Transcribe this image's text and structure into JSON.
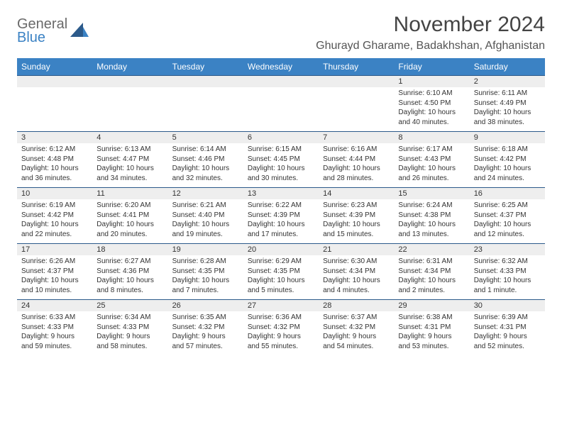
{
  "logo": {
    "general": "General",
    "blue": "Blue"
  },
  "title": "November 2024",
  "location": "Ghurayd Gharame, Badakhshan, Afghanistan",
  "colors": {
    "header_bg": "#3b82c4",
    "header_text": "#ffffff",
    "daynum_bg": "#eeeeee",
    "border": "#2c5a8a",
    "text": "#333333"
  },
  "weekdays": [
    "Sunday",
    "Monday",
    "Tuesday",
    "Wednesday",
    "Thursday",
    "Friday",
    "Saturday"
  ],
  "weeks": [
    [
      null,
      null,
      null,
      null,
      null,
      {
        "n": "1",
        "sr": "6:10 AM",
        "ss": "4:50 PM",
        "dl": "10 hours and 40 minutes."
      },
      {
        "n": "2",
        "sr": "6:11 AM",
        "ss": "4:49 PM",
        "dl": "10 hours and 38 minutes."
      }
    ],
    [
      {
        "n": "3",
        "sr": "6:12 AM",
        "ss": "4:48 PM",
        "dl": "10 hours and 36 minutes."
      },
      {
        "n": "4",
        "sr": "6:13 AM",
        "ss": "4:47 PM",
        "dl": "10 hours and 34 minutes."
      },
      {
        "n": "5",
        "sr": "6:14 AM",
        "ss": "4:46 PM",
        "dl": "10 hours and 32 minutes."
      },
      {
        "n": "6",
        "sr": "6:15 AM",
        "ss": "4:45 PM",
        "dl": "10 hours and 30 minutes."
      },
      {
        "n": "7",
        "sr": "6:16 AM",
        "ss": "4:44 PM",
        "dl": "10 hours and 28 minutes."
      },
      {
        "n": "8",
        "sr": "6:17 AM",
        "ss": "4:43 PM",
        "dl": "10 hours and 26 minutes."
      },
      {
        "n": "9",
        "sr": "6:18 AM",
        "ss": "4:42 PM",
        "dl": "10 hours and 24 minutes."
      }
    ],
    [
      {
        "n": "10",
        "sr": "6:19 AM",
        "ss": "4:42 PM",
        "dl": "10 hours and 22 minutes."
      },
      {
        "n": "11",
        "sr": "6:20 AM",
        "ss": "4:41 PM",
        "dl": "10 hours and 20 minutes."
      },
      {
        "n": "12",
        "sr": "6:21 AM",
        "ss": "4:40 PM",
        "dl": "10 hours and 19 minutes."
      },
      {
        "n": "13",
        "sr": "6:22 AM",
        "ss": "4:39 PM",
        "dl": "10 hours and 17 minutes."
      },
      {
        "n": "14",
        "sr": "6:23 AM",
        "ss": "4:39 PM",
        "dl": "10 hours and 15 minutes."
      },
      {
        "n": "15",
        "sr": "6:24 AM",
        "ss": "4:38 PM",
        "dl": "10 hours and 13 minutes."
      },
      {
        "n": "16",
        "sr": "6:25 AM",
        "ss": "4:37 PM",
        "dl": "10 hours and 12 minutes."
      }
    ],
    [
      {
        "n": "17",
        "sr": "6:26 AM",
        "ss": "4:37 PM",
        "dl": "10 hours and 10 minutes."
      },
      {
        "n": "18",
        "sr": "6:27 AM",
        "ss": "4:36 PM",
        "dl": "10 hours and 8 minutes."
      },
      {
        "n": "19",
        "sr": "6:28 AM",
        "ss": "4:35 PM",
        "dl": "10 hours and 7 minutes."
      },
      {
        "n": "20",
        "sr": "6:29 AM",
        "ss": "4:35 PM",
        "dl": "10 hours and 5 minutes."
      },
      {
        "n": "21",
        "sr": "6:30 AM",
        "ss": "4:34 PM",
        "dl": "10 hours and 4 minutes."
      },
      {
        "n": "22",
        "sr": "6:31 AM",
        "ss": "4:34 PM",
        "dl": "10 hours and 2 minutes."
      },
      {
        "n": "23",
        "sr": "6:32 AM",
        "ss": "4:33 PM",
        "dl": "10 hours and 1 minute."
      }
    ],
    [
      {
        "n": "24",
        "sr": "6:33 AM",
        "ss": "4:33 PM",
        "dl": "9 hours and 59 minutes."
      },
      {
        "n": "25",
        "sr": "6:34 AM",
        "ss": "4:33 PM",
        "dl": "9 hours and 58 minutes."
      },
      {
        "n": "26",
        "sr": "6:35 AM",
        "ss": "4:32 PM",
        "dl": "9 hours and 57 minutes."
      },
      {
        "n": "27",
        "sr": "6:36 AM",
        "ss": "4:32 PM",
        "dl": "9 hours and 55 minutes."
      },
      {
        "n": "28",
        "sr": "6:37 AM",
        "ss": "4:32 PM",
        "dl": "9 hours and 54 minutes."
      },
      {
        "n": "29",
        "sr": "6:38 AM",
        "ss": "4:31 PM",
        "dl": "9 hours and 53 minutes."
      },
      {
        "n": "30",
        "sr": "6:39 AM",
        "ss": "4:31 PM",
        "dl": "9 hours and 52 minutes."
      }
    ]
  ],
  "labels": {
    "sunrise": "Sunrise: ",
    "sunset": "Sunset: ",
    "daylight": "Daylight: "
  }
}
